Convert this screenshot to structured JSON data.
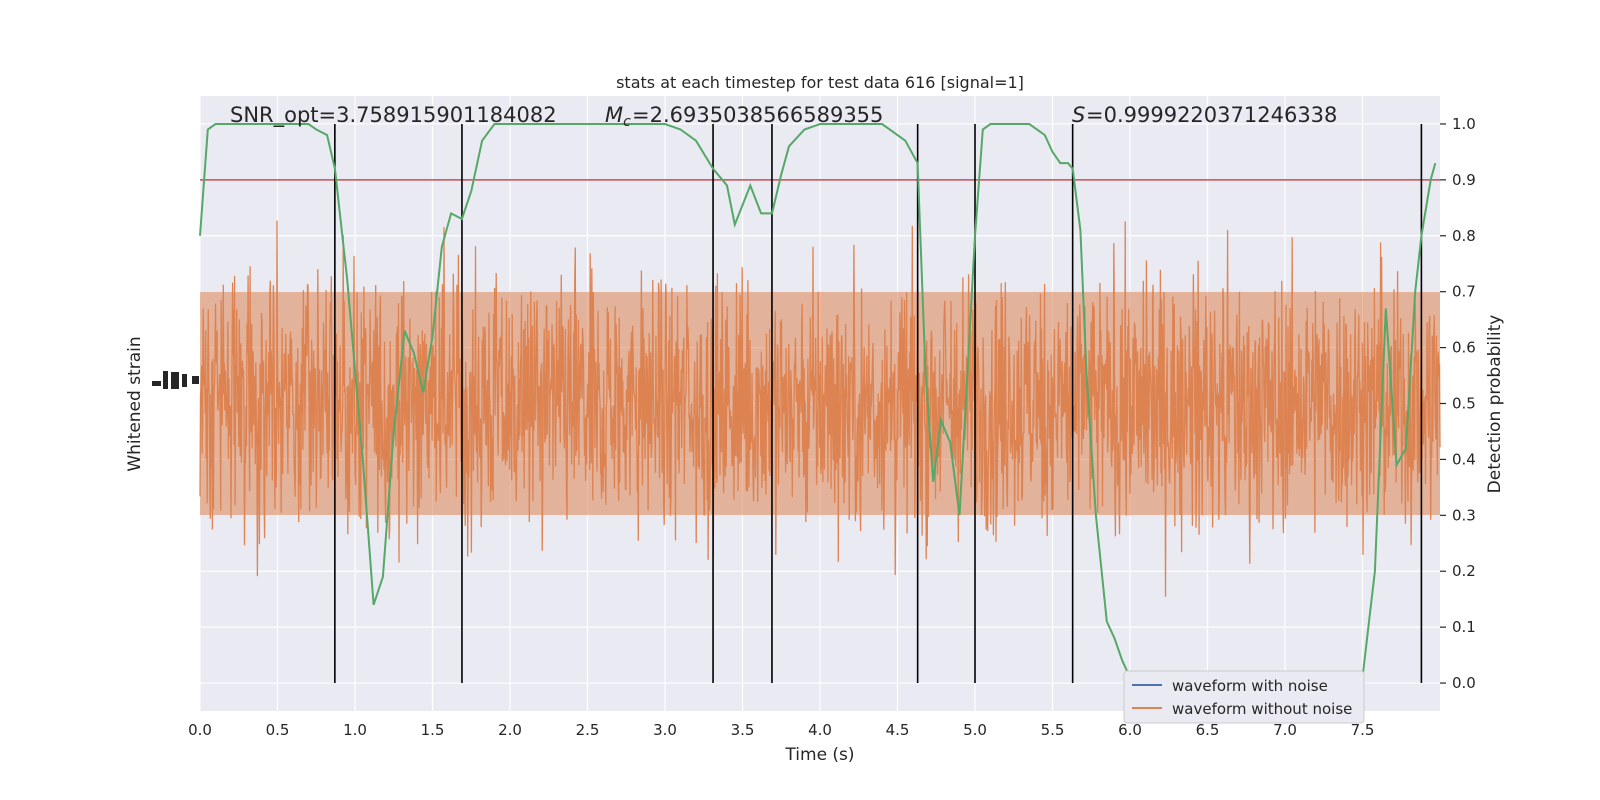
{
  "chart_data": {
    "type": "line",
    "title": "stats at each timestep for test data 616 [signal=1]",
    "xlabel": "Time (s)",
    "ylabel_left": "Whitened strain",
    "ylabel_right": "Detection probability",
    "xlim": [
      0.0,
      8.0
    ],
    "ylim_right": [
      -0.05,
      1.05
    ],
    "x_ticks": [
      "0.0",
      "0.5",
      "1.0",
      "1.5",
      "2.0",
      "2.5",
      "3.0",
      "3.5",
      "4.0",
      "4.5",
      "5.0",
      "5.5",
      "6.0",
      "6.5",
      "7.0",
      "7.5"
    ],
    "right_ticks": [
      "0.0",
      "0.1",
      "0.2",
      "0.3",
      "0.4",
      "0.5",
      "0.6",
      "0.7",
      "0.8",
      "0.9",
      "1.0"
    ],
    "grid": true,
    "legend_position": "lower right",
    "annotations": {
      "snr": "SNR_opt=3.758915901184082",
      "mc": "=2.6935038566589355",
      "s": "=0.9999220371246338"
    },
    "threshold": 0.9,
    "event_lines_x": [
      0.87,
      1.69,
      3.31,
      3.69,
      4.63,
      5.0,
      5.63,
      7.88
    ],
    "series": [
      {
        "name": "waveform with noise",
        "color": "#4c72b0"
      },
      {
        "name": "waveform without noise",
        "color": "#dd8452"
      }
    ],
    "probability": {
      "color": "#55a868",
      "x": [
        0.0,
        0.05,
        0.1,
        0.2,
        0.3,
        0.4,
        0.5,
        0.6,
        0.7,
        0.75,
        0.82,
        0.87,
        0.95,
        1.0,
        1.05,
        1.12,
        1.18,
        1.25,
        1.32,
        1.38,
        1.44,
        1.5,
        1.56,
        1.62,
        1.69,
        1.75,
        1.82,
        1.9,
        2.0,
        2.2,
        2.4,
        2.6,
        2.8,
        3.0,
        3.1,
        3.2,
        3.31,
        3.4,
        3.45,
        3.55,
        3.62,
        3.69,
        3.75,
        3.8,
        3.9,
        4.0,
        4.2,
        4.4,
        4.5,
        4.55,
        4.63,
        4.68,
        4.73,
        4.78,
        4.84,
        4.9,
        4.95,
        5.0,
        5.05,
        5.1,
        5.15,
        5.2,
        5.3,
        5.35,
        5.4,
        5.45,
        5.5,
        5.55,
        5.6,
        5.63,
        5.68,
        5.72,
        5.78,
        5.85,
        5.9,
        5.95,
        6.0,
        6.05,
        6.1,
        6.2,
        6.4,
        6.6,
        6.8,
        7.0,
        7.2,
        7.4,
        7.5,
        7.58,
        7.65,
        7.72,
        7.78,
        7.84,
        7.88,
        7.94,
        7.97
      ],
      "y": [
        0.8,
        0.99,
        1.0,
        1.0,
        1.0,
        1.0,
        1.0,
        1.0,
        1.0,
        0.99,
        0.98,
        0.92,
        0.72,
        0.56,
        0.4,
        0.14,
        0.19,
        0.45,
        0.63,
        0.59,
        0.52,
        0.62,
        0.78,
        0.84,
        0.83,
        0.88,
        0.97,
        1.0,
        1.0,
        1.0,
        1.0,
        1.0,
        1.0,
        1.0,
        0.99,
        0.97,
        0.92,
        0.89,
        0.82,
        0.89,
        0.84,
        0.84,
        0.91,
        0.96,
        0.99,
        1.0,
        1.0,
        1.0,
        0.98,
        0.97,
        0.93,
        0.56,
        0.36,
        0.47,
        0.43,
        0.3,
        0.55,
        0.8,
        0.99,
        1.0,
        1.0,
        1.0,
        1.0,
        1.0,
        0.99,
        0.98,
        0.95,
        0.93,
        0.93,
        0.92,
        0.81,
        0.55,
        0.3,
        0.11,
        0.08,
        0.04,
        0.01,
        0.0,
        0.0,
        0.0,
        0.0,
        0.0,
        0.0,
        0.0,
        0.0,
        0.0,
        0.01,
        0.2,
        0.67,
        0.39,
        0.42,
        0.7,
        0.8,
        0.9,
        0.93
      ]
    }
  }
}
